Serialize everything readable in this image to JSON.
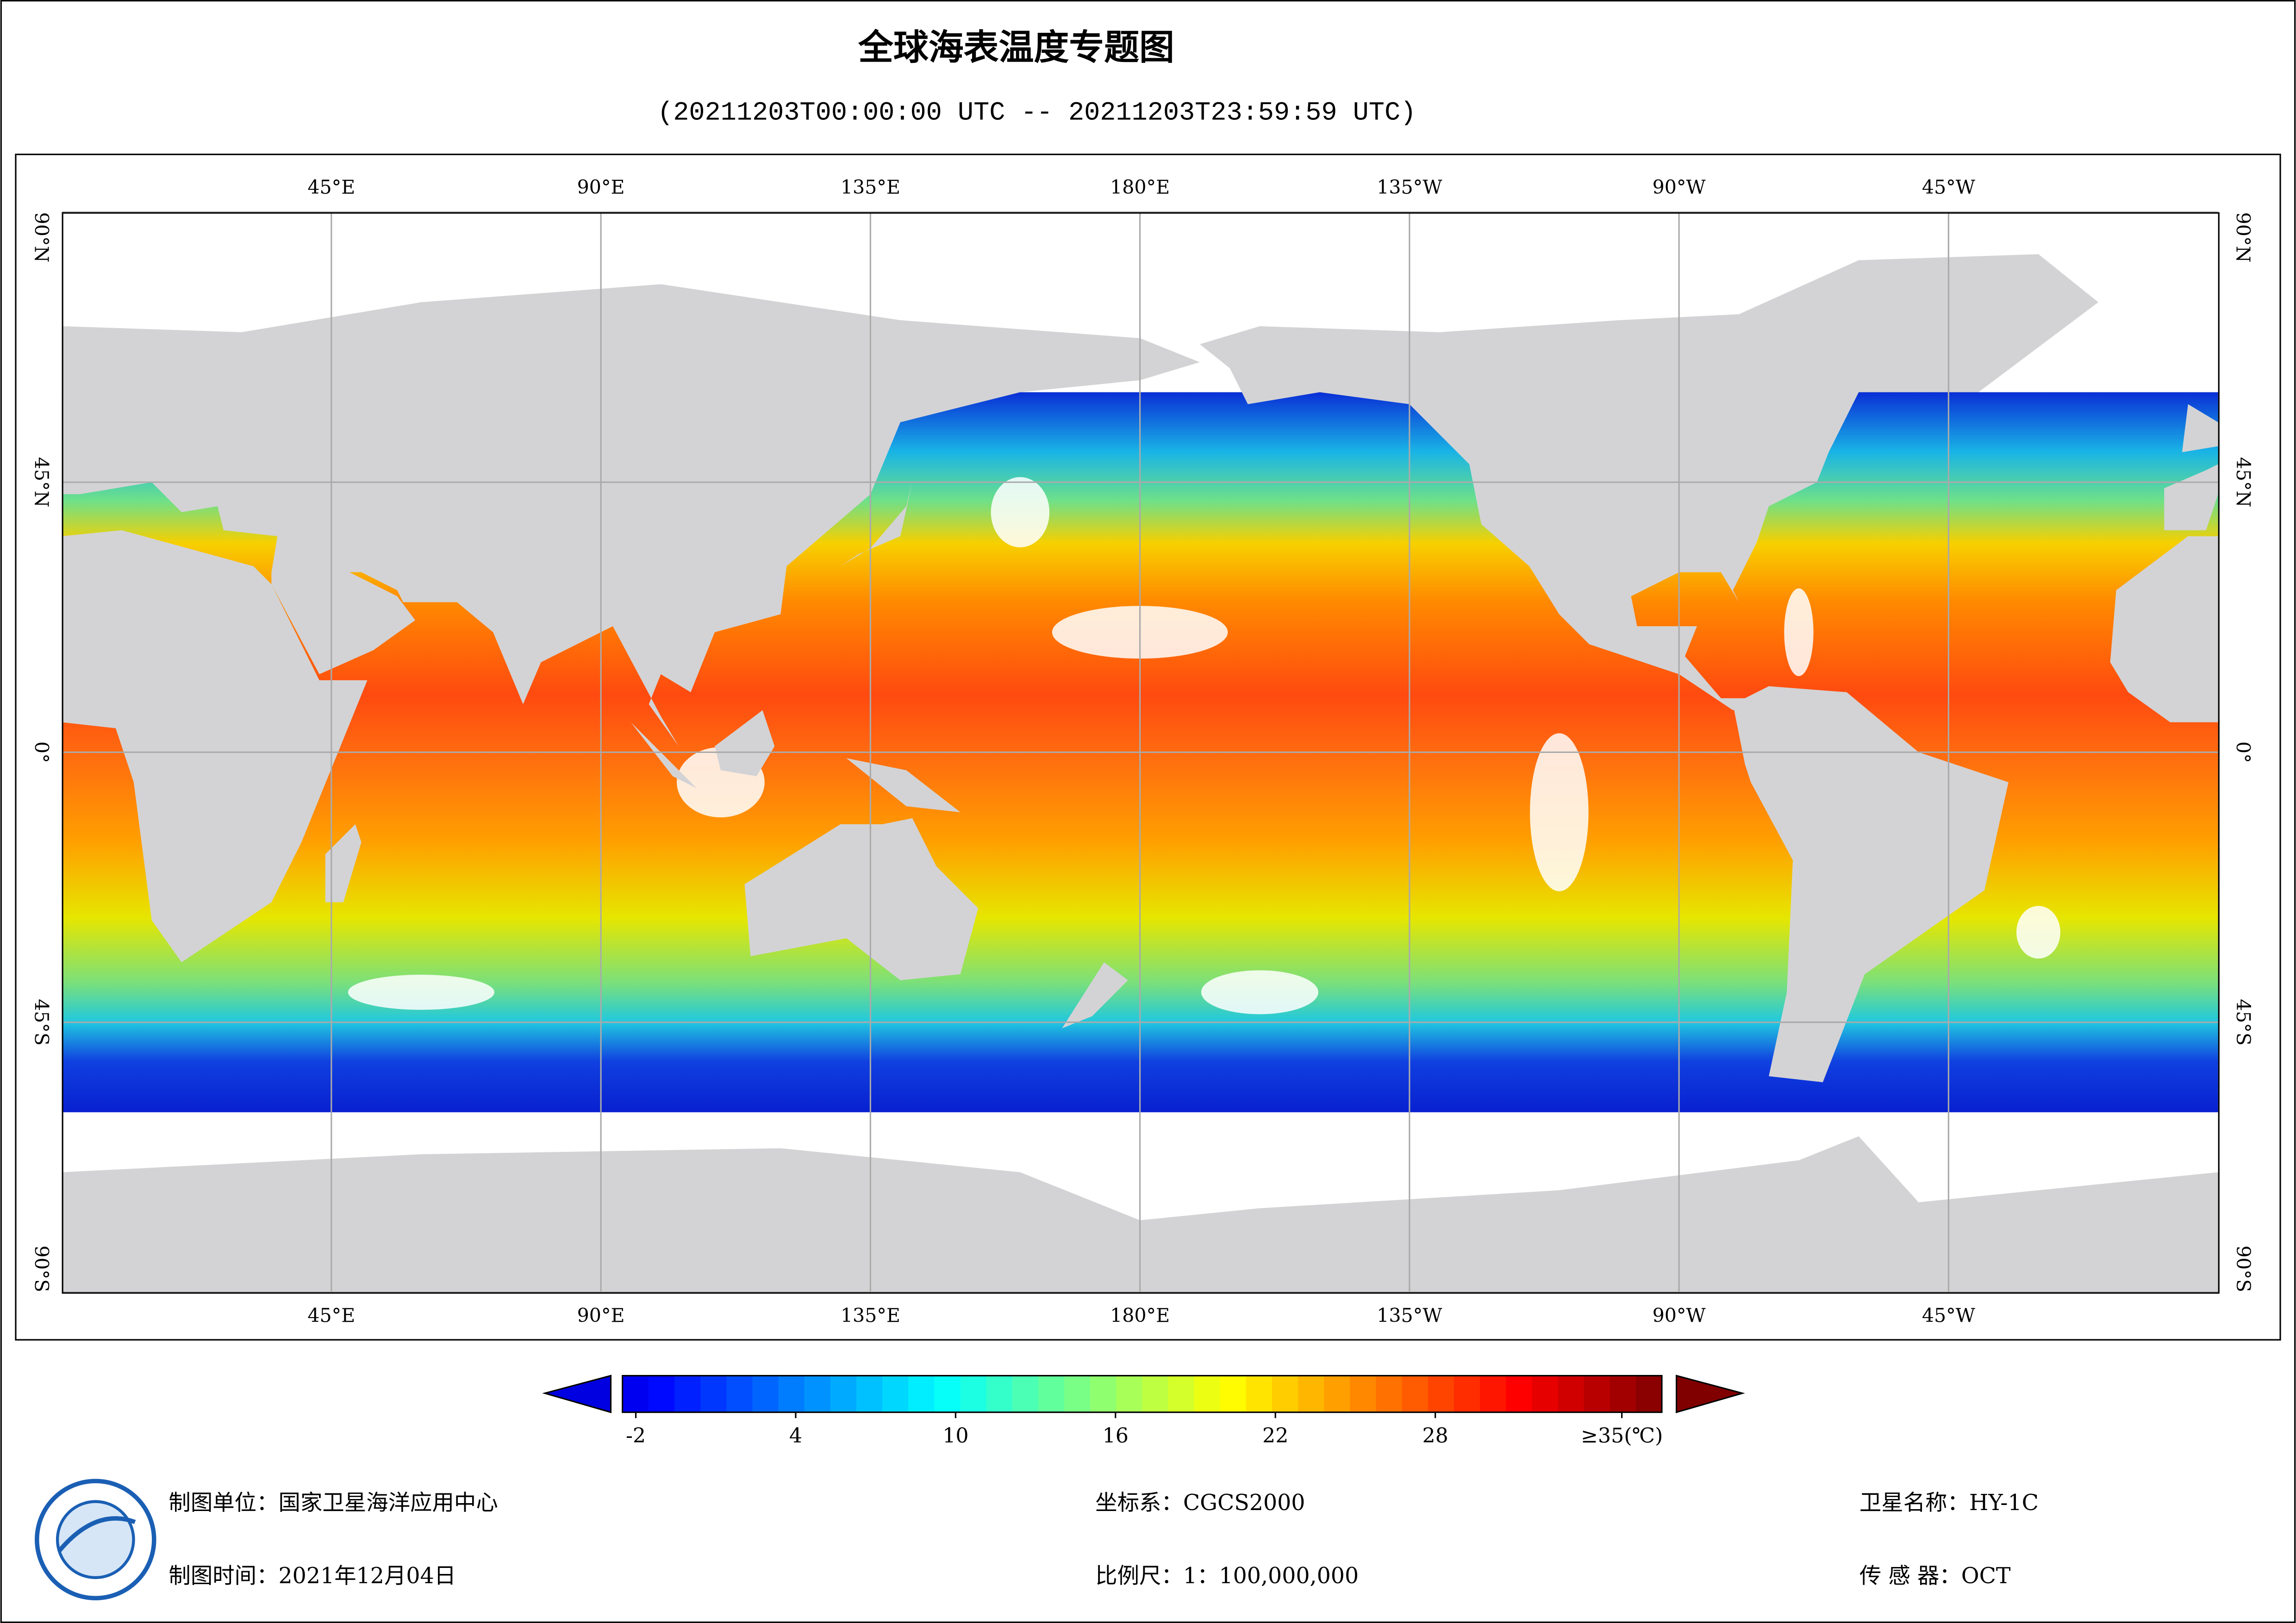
{
  "title": "全球海表温度专题图",
  "subtitle": "(20211203T00:00:00 UTC -- 20211203T23:59:59 UTC)",
  "map": {
    "xlim": [
      0,
      360
    ],
    "ylim": [
      -90,
      90
    ],
    "lon_ticks": [
      {
        "value": 45,
        "label": "45°E"
      },
      {
        "value": 90,
        "label": "90°E"
      },
      {
        "value": 135,
        "label": "135°E"
      },
      {
        "value": 180,
        "label": "180°E"
      },
      {
        "value": 225,
        "label": "135°W"
      },
      {
        "value": 270,
        "label": "90°W"
      },
      {
        "value": 315,
        "label": "45°W"
      }
    ],
    "lat_ticks": [
      {
        "value": 90,
        "label": "90°N"
      },
      {
        "value": 45,
        "label": "45°N"
      },
      {
        "value": 0,
        "label": "0°"
      },
      {
        "value": -45,
        "label": "45°S"
      },
      {
        "value": -90,
        "label": "90°S"
      }
    ]
  },
  "colorbar": {
    "lim": [
      -2.5,
      36.5
    ],
    "ticks": [
      -2,
      4,
      10,
      16,
      22,
      28,
      {
        "value": 35,
        "label": "≥35(℃)"
      }
    ]
  },
  "footer": {
    "unit": "制图单位：国家卫星海洋应用中心",
    "time": "制图时间：2021年12月04日",
    "crs": "坐标系：CGCS2000",
    "scale": "比例尺：1：100,000,000",
    "satellite": "卫星名称：HY-1C",
    "sensor": "传 感 器：OCT"
  }
}
